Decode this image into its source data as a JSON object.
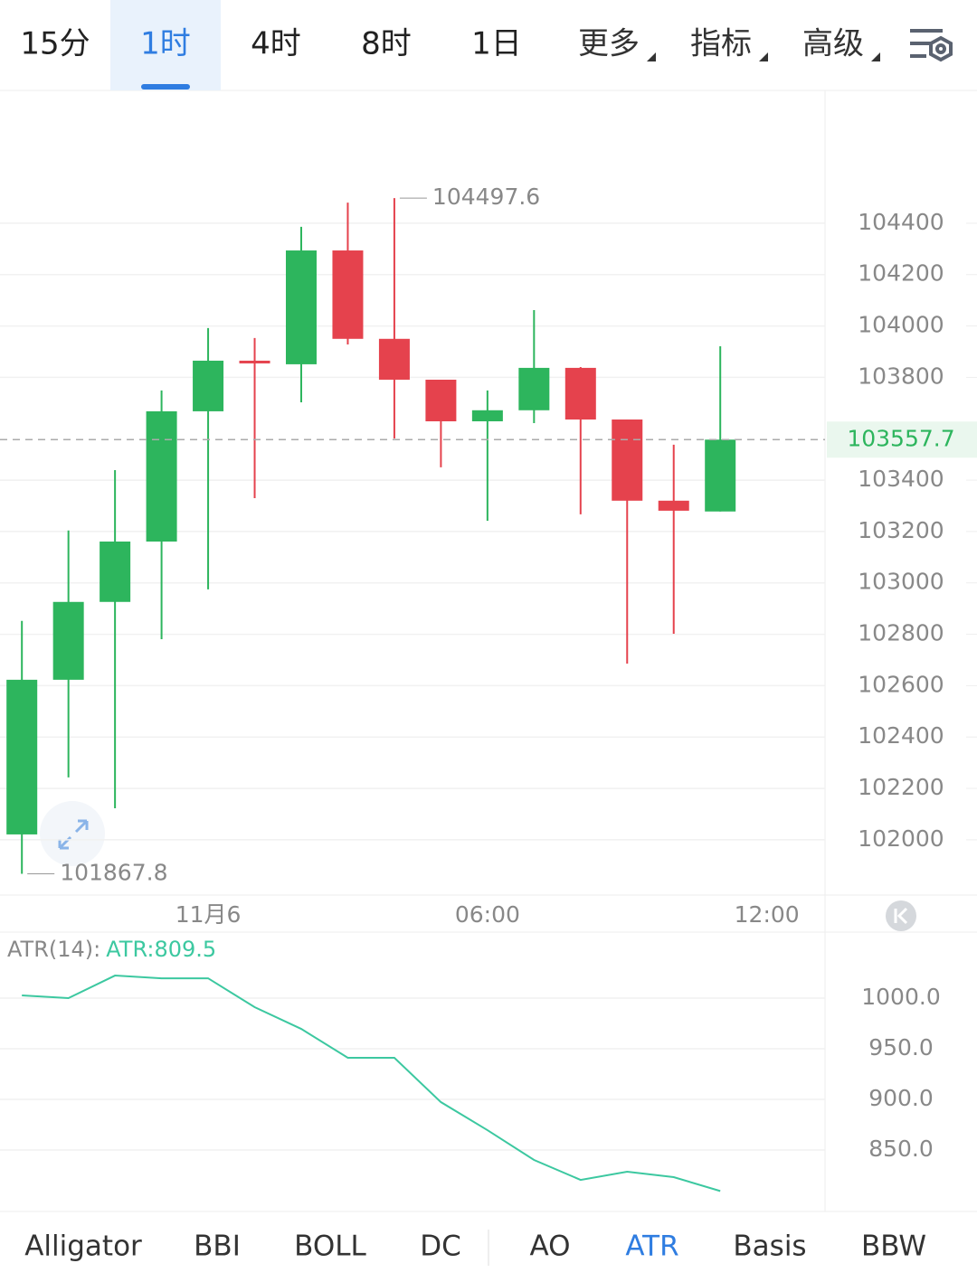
{
  "tabs": {
    "items": [
      "15分",
      "1时",
      "4时",
      "8时",
      "1日"
    ],
    "active": 1,
    "menus": [
      "更多",
      "指标",
      "高级"
    ]
  },
  "chart_data": [
    {
      "type": "candlestick",
      "open": [
        102021,
        102623,
        102926,
        103161,
        103668,
        103865,
        103851,
        104294,
        103950,
        103791,
        103629,
        103672,
        103837,
        103636,
        103320,
        103278
      ],
      "high": [
        102852,
        103204,
        103439,
        103749,
        103992,
        103953,
        104386,
        104480,
        104497.6,
        103791,
        103749,
        104062,
        103840,
        103636,
        103538,
        103921
      ],
      "low": [
        101867.8,
        102243,
        102123,
        102781,
        102975,
        103330,
        103703,
        103928,
        103562,
        103450,
        103242,
        103622,
        103267,
        102686,
        102802,
        103278
      ],
      "close": [
        102623,
        102926,
        103161,
        103668,
        103865,
        103855,
        104294,
        103950,
        103791,
        103629,
        103672,
        103837,
        103636,
        103320,
        103281,
        103557.7
      ],
      "up_color": "#2db55d",
      "down_color": "#e5424d",
      "ylim": [
        101785,
        104917
      ],
      "yticks": [
        102000,
        102200,
        102400,
        102600,
        102800,
        103000,
        103200,
        103400,
        103800,
        104000,
        104200,
        104400
      ],
      "xlim": [
        -0.47,
        17.25
      ],
      "xticks": [
        {
          "value": 4,
          "label": "11月6"
        },
        {
          "value": 10,
          "label": "06:00"
        },
        {
          "value": 16,
          "label": "12:00"
        }
      ],
      "grid": true
    },
    {
      "type": "line",
      "title": "ATR(14):",
      "readout": "ATR:809.5",
      "series": [
        {
          "name": "ATR",
          "color": "#3cc8a0",
          "values": [
            1002.7,
            1000,
            1022.3,
            1019.6,
            1019.6,
            991.1,
            969.6,
            941.1,
            941.1,
            897.3,
            869.6,
            840.2,
            820.5,
            828.6,
            823.2,
            809.5
          ]
        }
      ],
      "ylim": [
        789.3,
        1064.3
      ],
      "yticks": [
        {
          "value": 850,
          "label": "850.0"
        },
        {
          "value": 900,
          "label": "900.0"
        },
        {
          "value": 950,
          "label": "950.0"
        },
        {
          "value": 1000,
          "label": "1000.0"
        }
      ],
      "grid": true
    }
  ],
  "indicators": {
    "items": [
      "Alligator",
      "BBI",
      "BOLL",
      "DC",
      "AO",
      "ATR",
      "Basis",
      "BBW"
    ],
    "active": 5
  }
}
